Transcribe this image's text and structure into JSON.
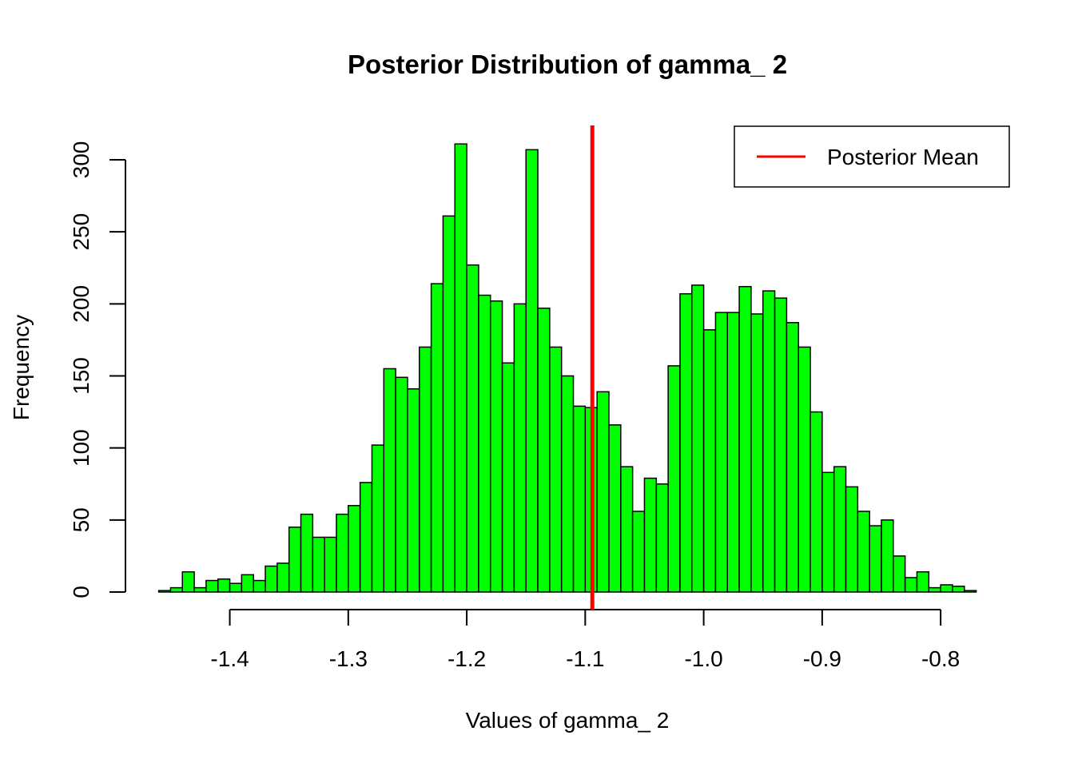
{
  "chart_data": {
    "type": "bar",
    "title": "Posterior Distribution of gamma_ 2",
    "xlabel": "Values of gamma_ 2",
    "ylabel": "Frequency",
    "bar_color": "#00ff00",
    "bin_width": 0.01,
    "bins_start": -1.46,
    "values": [
      1,
      3,
      14,
      3,
      8,
      9,
      6,
      12,
      8,
      18,
      20,
      45,
      54,
      38,
      38,
      54,
      60,
      76,
      102,
      155,
      149,
      141,
      170,
      214,
      261,
      311,
      227,
      206,
      202,
      159,
      200,
      307,
      197,
      170,
      150,
      129,
      128,
      139,
      116,
      87,
      56,
      79,
      75,
      157,
      207,
      213,
      182,
      194,
      194,
      212,
      193,
      209,
      204,
      187,
      170,
      125,
      83,
      87,
      73,
      56,
      46,
      50,
      25,
      10,
      14,
      3,
      5,
      4,
      1
    ],
    "xlim": [
      -1.46,
      -0.77
    ],
    "ylim": [
      0,
      320
    ],
    "x_ticks": [
      -1.4,
      -1.3,
      -1.2,
      -1.1,
      -1.0,
      -0.9,
      -0.8
    ],
    "x_tick_labels": [
      "-1.4",
      "-1.3",
      "-1.2",
      "-1.1",
      "-1.0",
      "-0.9",
      "-0.8"
    ],
    "y_ticks": [
      0,
      50,
      100,
      150,
      200,
      250,
      300
    ],
    "y_tick_labels": [
      "0",
      "50",
      "100",
      "150",
      "200",
      "250",
      "300"
    ],
    "reference_line": {
      "name": "Posterior Mean",
      "x": -1.094,
      "color": "#ff0000"
    },
    "legend": {
      "position": "top-right",
      "entries": [
        "Posterior Mean"
      ]
    },
    "grid": false
  }
}
